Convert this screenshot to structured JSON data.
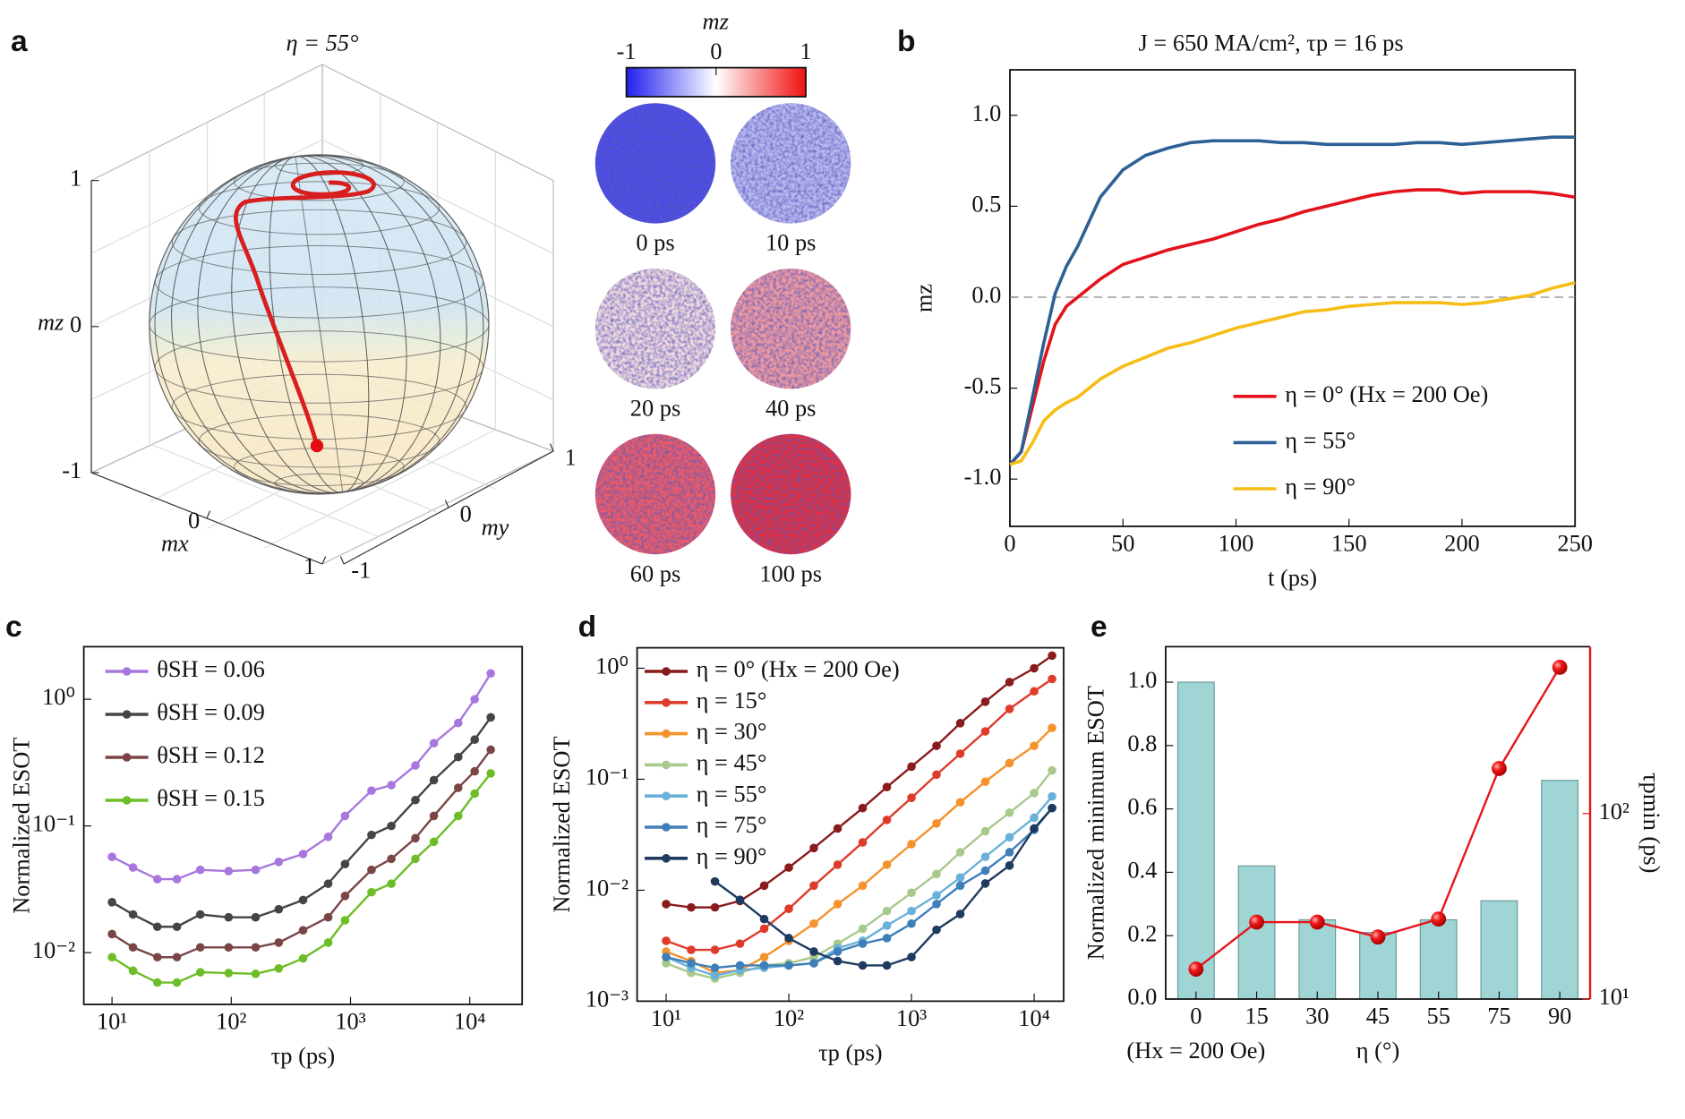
{
  "chart_data": [
    {
      "type": "sphere",
      "panel": "a",
      "title": "η = 55°",
      "xlabel": "mx",
      "ylabel": "my",
      "zlabel": "mz",
      "xticks": [
        0,
        1
      ],
      "yticks": [
        -1,
        0,
        1
      ],
      "zticks": [
        -1,
        0,
        1
      ],
      "color": "#d81e1e"
    },
    {
      "type": "snapshots",
      "labels": [
        "0 ps",
        "10 ps",
        "20 ps",
        "40 ps",
        "60 ps",
        "100 ps"
      ],
      "snapshot_colors": [
        "#4b4be6",
        "#b9b9f0",
        "#f1dadf",
        "#f09aa0",
        "#ee5b66",
        "#e62e3c"
      ],
      "colorbar": {
        "label": "mz",
        "ticks": [
          -1,
          0,
          1
        ],
        "colors": [
          "#2020f0",
          "#ffffff",
          "#f01010"
        ]
      }
    },
    {
      "type": "line",
      "panel": "b",
      "title": "J = 650 MA/cm², τp = 16 ps",
      "xlabel": "t (ps)",
      "ylabel": "mz",
      "xlim": [
        0,
        250
      ],
      "ylim": [
        -1.26,
        1.25
      ],
      "xticks": [
        0,
        50,
        100,
        150,
        200,
        250
      ],
      "yticks": [
        {
          "value": -1,
          "label": "-1.0"
        },
        -0.5,
        {
          "value": 0,
          "label": "0.0"
        },
        0.5,
        {
          "value": 1,
          "label": "1.0"
        }
      ],
      "hline": 0,
      "legend": "lower-right",
      "x": [
        0,
        5,
        10,
        15,
        20,
        25,
        30,
        40,
        50,
        60,
        70,
        80,
        90,
        100,
        110,
        120,
        130,
        140,
        150,
        160,
        170,
        180,
        190,
        200,
        210,
        220,
        230,
        240,
        250
      ],
      "series": [
        {
          "name": "η = 0° (Hx = 200 Oe)",
          "color": "#e3121b",
          "values": [
            -0.92,
            -0.85,
            -0.6,
            -0.35,
            -0.15,
            -0.05,
            0.0,
            0.1,
            0.18,
            0.22,
            0.26,
            0.29,
            0.32,
            0.36,
            0.4,
            0.43,
            0.47,
            0.5,
            0.53,
            0.56,
            0.58,
            0.59,
            0.59,
            0.57,
            0.58,
            0.58,
            0.58,
            0.57,
            0.55
          ]
        },
        {
          "name": "η = 55°",
          "color": "#2e6095",
          "values": [
            -0.92,
            -0.85,
            -0.55,
            -0.25,
            0.02,
            0.17,
            0.28,
            0.55,
            0.7,
            0.78,
            0.82,
            0.85,
            0.86,
            0.86,
            0.86,
            0.85,
            0.85,
            0.84,
            0.84,
            0.84,
            0.84,
            0.85,
            0.85,
            0.84,
            0.85,
            0.86,
            0.87,
            0.88,
            0.88
          ]
        },
        {
          "name": "η = 90°",
          "color": "#f6bd16",
          "values": [
            -0.92,
            -0.9,
            -0.8,
            -0.68,
            -0.62,
            -0.58,
            -0.55,
            -0.45,
            -0.38,
            -0.33,
            -0.28,
            -0.25,
            -0.21,
            -0.17,
            -0.14,
            -0.11,
            -0.08,
            -0.07,
            -0.05,
            -0.04,
            -0.03,
            -0.03,
            -0.03,
            -0.04,
            -0.03,
            -0.01,
            0.01,
            0.05,
            0.08
          ]
        }
      ]
    },
    {
      "type": "line",
      "panel": "c",
      "xlabel": "τp (ps)",
      "ylabel": "Normalized ESOT",
      "xlog": true,
      "ylog": true,
      "markers": true,
      "legend": "upper-left",
      "xlim": [
        5.8,
        27500
      ],
      "ylim": [
        0.0039,
        2.6
      ],
      "xticks": [
        {
          "value": 10,
          "label": "10¹"
        },
        {
          "value": 100,
          "label": "10²"
        },
        {
          "value": 1000,
          "label": "10³"
        },
        {
          "value": 10000,
          "label": "10⁴"
        }
      ],
      "yticks": [
        {
          "value": 0.01,
          "label": "10⁻²"
        },
        {
          "value": 0.1,
          "label": "10⁻¹"
        },
        {
          "value": 1,
          "label": "10⁰"
        }
      ],
      "x": [
        10,
        15,
        24,
        35,
        55,
        95,
        160,
        250,
        400,
        650,
        900,
        1500,
        2200,
        3500,
        5000,
        8000,
        11000,
        15000
      ],
      "series": [
        {
          "name": "θSH = 0.06",
          "color": "#a877dd",
          "values": [
            0.057,
            0.047,
            0.038,
            0.038,
            0.045,
            0.044,
            0.045,
            0.052,
            0.06,
            0.082,
            0.12,
            0.19,
            0.21,
            0.3,
            0.45,
            0.65,
            1.0,
            1.6
          ]
        },
        {
          "name": "θSH = 0.09",
          "color": "#454545",
          "values": [
            0.025,
            0.02,
            0.016,
            0.016,
            0.02,
            0.019,
            0.019,
            0.022,
            0.026,
            0.035,
            0.05,
            0.085,
            0.1,
            0.16,
            0.23,
            0.35,
            0.48,
            0.72
          ]
        },
        {
          "name": "θSH = 0.12",
          "color": "#7a4547",
          "values": [
            0.014,
            0.011,
            0.0092,
            0.0092,
            0.011,
            0.011,
            0.011,
            0.012,
            0.015,
            0.019,
            0.028,
            0.045,
            0.055,
            0.08,
            0.12,
            0.2,
            0.27,
            0.4
          ]
        },
        {
          "name": "θSH = 0.15",
          "color": "#6dbd28",
          "values": [
            0.0092,
            0.0072,
            0.0058,
            0.0058,
            0.007,
            0.0069,
            0.0068,
            0.0075,
            0.009,
            0.012,
            0.018,
            0.03,
            0.035,
            0.055,
            0.075,
            0.12,
            0.18,
            0.26
          ]
        }
      ]
    },
    {
      "type": "line",
      "panel": "d",
      "xlabel": "τp (ps)",
      "ylabel": "Normalized ESOT",
      "xlog": true,
      "ylog": true,
      "markers": true,
      "legend": "upper-left",
      "xlim": [
        5.8,
        17400
      ],
      "ylim": [
        0.001,
        1.53
      ],
      "xticks": [
        {
          "value": 10,
          "label": "10¹"
        },
        {
          "value": 100,
          "label": "10²"
        },
        {
          "value": 1000,
          "label": "10³"
        },
        {
          "value": 10000,
          "label": "10⁴"
        }
      ],
      "yticks": [
        {
          "value": 0.001,
          "label": "10⁻³"
        },
        {
          "value": 0.01,
          "label": "10⁻²"
        },
        {
          "value": 0.1,
          "label": "10⁻¹"
        },
        {
          "value": 1,
          "label": "10⁰"
        }
      ],
      "x": [
        10,
        16,
        25,
        40,
        63,
        100,
        160,
        250,
        400,
        630,
        1000,
        1600,
        2500,
        4000,
        6300,
        10000,
        14000
      ],
      "series": [
        {
          "name": "η = 0° (Hx = 200 Oe)",
          "color": "#8a1b1d",
          "values": [
            0.0075,
            0.007,
            0.007,
            0.008,
            0.011,
            0.016,
            0.024,
            0.036,
            0.055,
            0.085,
            0.13,
            0.2,
            0.32,
            0.5,
            0.75,
            1.0,
            1.3
          ]
        },
        {
          "name": "η = 15°",
          "color": "#df3b2b",
          "values": [
            0.0035,
            0.0029,
            0.0029,
            0.0033,
            0.0045,
            0.0068,
            0.011,
            0.017,
            0.027,
            0.043,
            0.068,
            0.11,
            0.17,
            0.27,
            0.43,
            0.62,
            0.8
          ]
        },
        {
          "name": "η = 30°",
          "color": "#f4922b",
          "values": [
            0.0028,
            0.0023,
            0.0018,
            0.0019,
            0.0025,
            0.0035,
            0.005,
            0.0075,
            0.011,
            0.017,
            0.026,
            0.04,
            0.062,
            0.095,
            0.14,
            0.2,
            0.29
          ]
        },
        {
          "name": "η = 45°",
          "color": "#a9c98b",
          "values": [
            0.0022,
            0.0018,
            0.0016,
            0.0018,
            0.0021,
            0.0022,
            0.0025,
            0.0033,
            0.0045,
            0.0065,
            0.0095,
            0.014,
            0.022,
            0.034,
            0.05,
            0.075,
            0.12
          ]
        },
        {
          "name": "η = 55°",
          "color": "#6ab1d9",
          "values": [
            0.0025,
            0.002,
            0.0017,
            0.0019,
            0.002,
            0.0021,
            0.0022,
            0.003,
            0.0035,
            0.0048,
            0.0065,
            0.009,
            0.013,
            0.02,
            0.03,
            0.045,
            0.07
          ]
        },
        {
          "name": "η = 75°",
          "color": "#3f7fb8",
          "values": [
            0.0025,
            0.0022,
            0.002,
            0.0021,
            0.0021,
            0.0021,
            0.0022,
            0.0028,
            0.0033,
            0.0037,
            0.005,
            0.0075,
            0.011,
            0.015,
            0.022,
            0.035,
            0.055
          ]
        },
        {
          "name": "η = 90°",
          "color": "#1f3a5f",
          "values": [
            null,
            null,
            0.012,
            0.0082,
            0.0055,
            0.0037,
            0.0028,
            0.0023,
            0.0021,
            0.0021,
            0.0025,
            0.0044,
            0.0061,
            0.0115,
            0.0167,
            0.036,
            0.055
          ]
        }
      ]
    },
    {
      "type": "bar",
      "panel": "e",
      "xlabel": "η (°)",
      "ylabel": "Normalized minimum ESOT",
      "y2label": "τpmin (ps)",
      "annotation": "(Hx = 200 Oe)",
      "categories": [
        "0",
        "15",
        "30",
        "45",
        "55",
        "75",
        "90"
      ],
      "ylim": [
        0,
        1.112
      ],
      "yticks": [
        {
          "value": 0,
          "label": "0.0"
        },
        0.2,
        0.4,
        0.6,
        0.8,
        {
          "value": 1,
          "label": "1.0"
        }
      ],
      "y2lim": [
        10,
        794
      ],
      "y2log": true,
      "y2ticks": [
        {
          "value": 10,
          "label": "10¹"
        },
        {
          "value": 100,
          "label": "10²"
        }
      ],
      "series": [
        {
          "color": "#9fd6d5",
          "values": [
            1.0,
            0.42,
            0.25,
            0.21,
            0.25,
            0.31,
            0.69
          ]
        },
        {
          "color": "#e8141c",
          "axis": "y2",
          "values": [
            14.5,
            26,
            26,
            21.6,
            27,
            175,
            615
          ]
        }
      ]
    }
  ]
}
